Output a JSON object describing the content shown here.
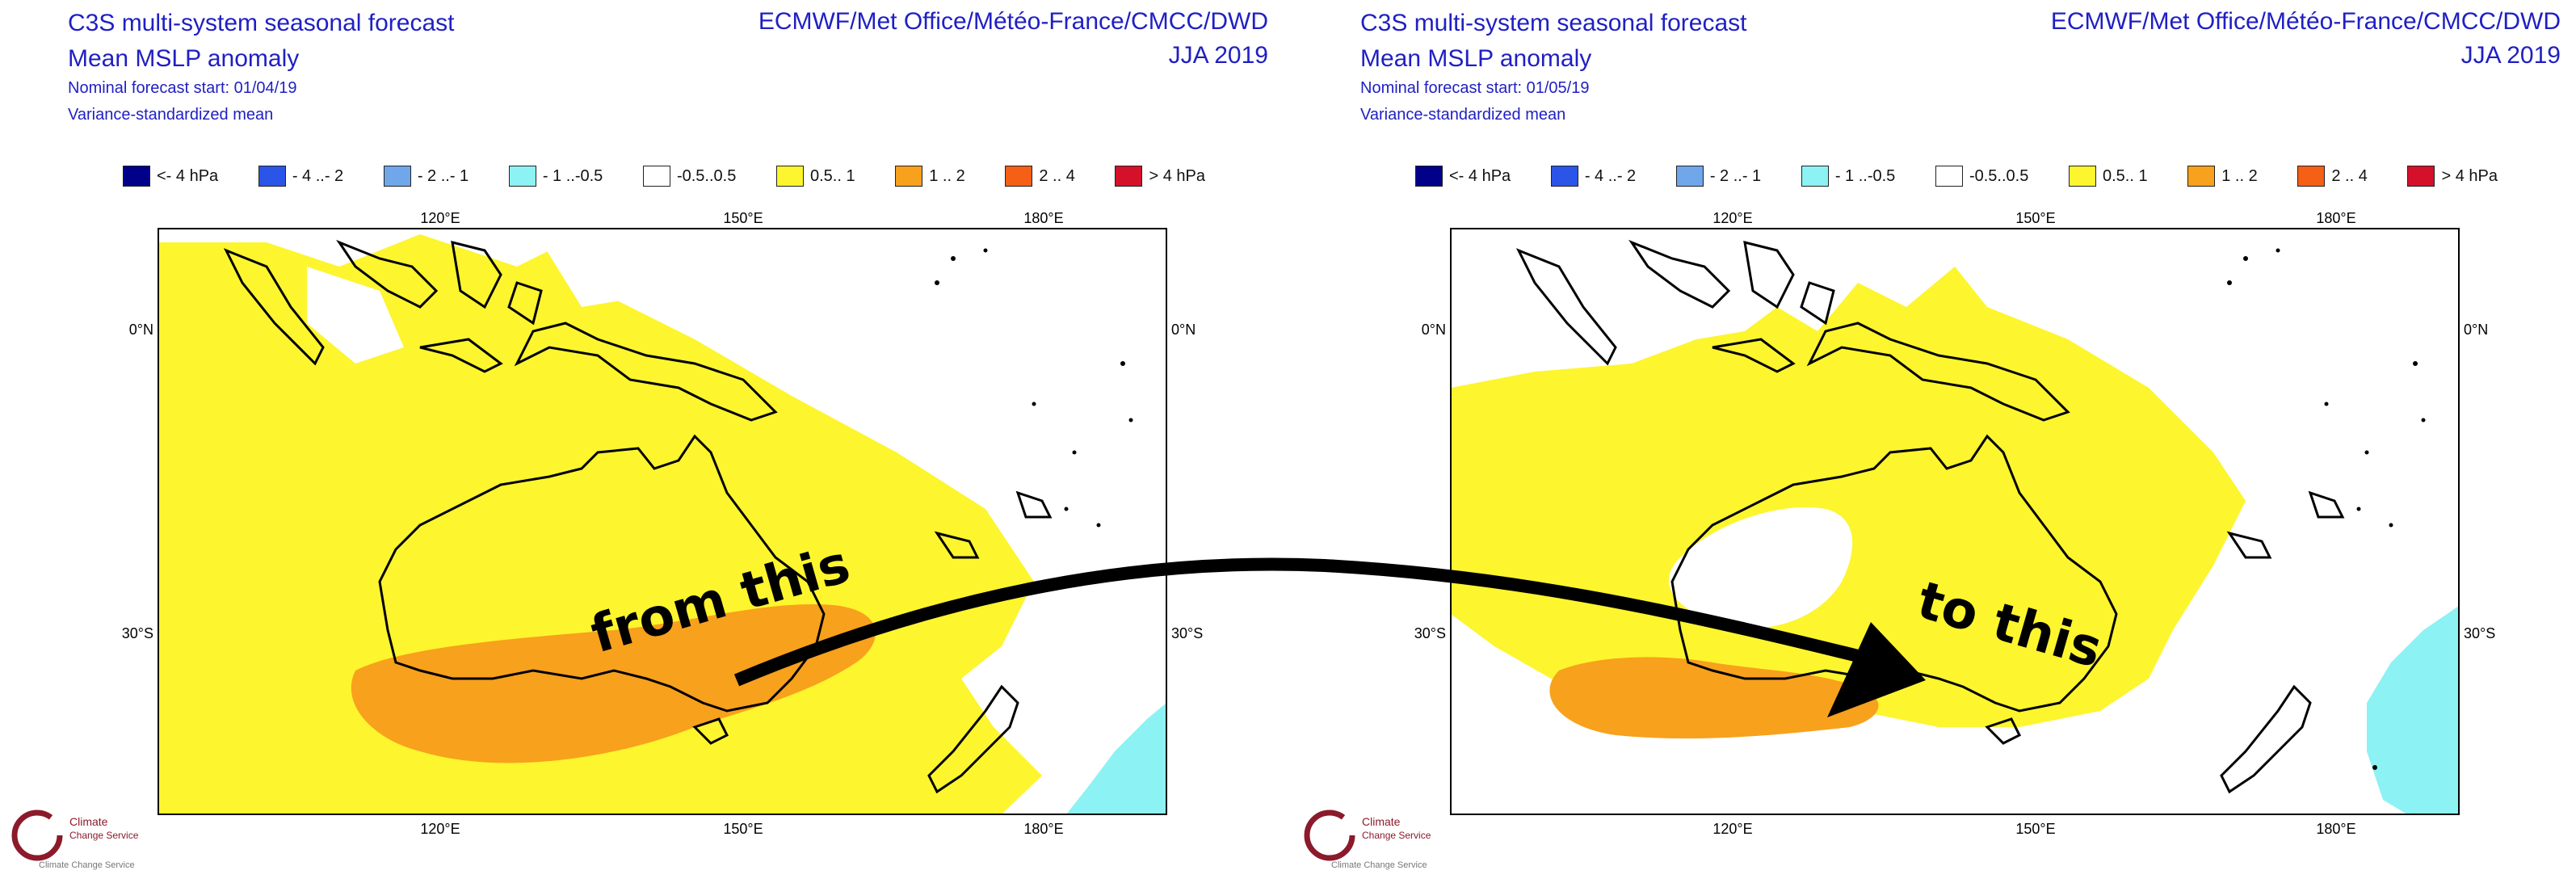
{
  "panels": [
    {
      "title_line1": "C3S multi-system seasonal forecast",
      "title_line2": "Mean MSLP anomaly",
      "forecast_start": "Nominal forecast start: 01/04/19",
      "method": "Variance-standardized mean",
      "providers": "ECMWF/Met Office/Météo-France/CMCC/DWD",
      "season": "JJA 2019"
    },
    {
      "title_line1": "C3S multi-system seasonal forecast",
      "title_line2": "Mean MSLP anomaly",
      "forecast_start": "Nominal forecast start: 01/05/19",
      "method": "Variance-standardized mean",
      "providers": "ECMWF/Met Office/Météo-France/CMCC/DWD",
      "season": "JJA 2019"
    }
  ],
  "legend": [
    {
      "label": "<- 4 hPa",
      "color": "#00008b"
    },
    {
      "label": "- 4 ..- 2",
      "color": "#2b54e8"
    },
    {
      "label": "- 2 ..- 1",
      "color": "#6fa7ea"
    },
    {
      "label": "- 1 ..-0.5",
      "color": "#8cf2f4"
    },
    {
      "label": "-0.5..0.5",
      "color": "#ffffff"
    },
    {
      "label": "0.5.. 1",
      "color": "#fdf52e"
    },
    {
      "label": "1 .. 2",
      "color": "#f8a11c"
    },
    {
      "label": "2 .. 4",
      "color": "#f55f16"
    },
    {
      "label": "> 4 hPa",
      "color": "#d4102a"
    }
  ],
  "map_labels": {
    "lon_ticks": [
      "120°E",
      "150°E",
      "180°E"
    ],
    "lat_ticks": [
      "0°N",
      "30°S"
    ]
  },
  "annotations": {
    "from_label": "from this",
    "to_label": "to this"
  },
  "logo": {
    "line1": "Climate",
    "line2": "Change Service",
    "line3": "Climate Change Service"
  },
  "colors": {
    "title_blue": "#1f1fc4",
    "anomaly_yellow": "#fdf52e",
    "anomaly_orange": "#f8a11c",
    "anomaly_cyan": "#8cf2f4",
    "logo_red": "#8b1a2b"
  }
}
